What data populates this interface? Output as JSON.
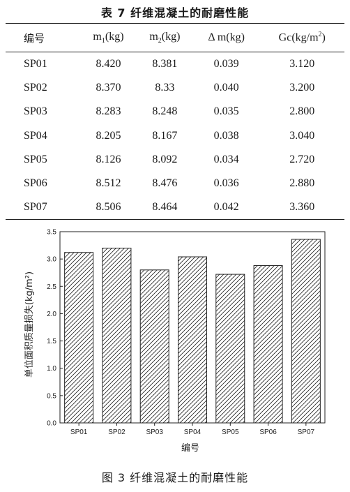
{
  "table": {
    "title": "表 7   纤维混凝土的耐磨性能",
    "headers": {
      "id": "编号",
      "m1_base": "m",
      "m1_sub": "1",
      "m1_unit": "(kg)",
      "m2_base": "m",
      "m2_sub": "2",
      "m2_unit": "(kg)",
      "dm": "Δ m(kg)",
      "gc_base": "Gc(kg/m",
      "gc_sup": "2",
      "gc_end": ")"
    },
    "rows": [
      {
        "id": "SP01",
        "m1": "8.420",
        "m2": "8.381",
        "dm": "0.039",
        "gc": "3.120"
      },
      {
        "id": "SP02",
        "m1": "8.370",
        "m2": "8.33",
        "dm": "0.040",
        "gc": "3.200"
      },
      {
        "id": "SP03",
        "m1": "8.283",
        "m2": "8.248",
        "dm": "0.035",
        "gc": "2.800"
      },
      {
        "id": "SP04",
        "m1": "8.205",
        "m2": "8.167",
        "dm": "0.038",
        "gc": "3.040"
      },
      {
        "id": "SP05",
        "m1": "8.126",
        "m2": "8.092",
        "dm": "0.034",
        "gc": "2.720"
      },
      {
        "id": "SP06",
        "m1": "8.512",
        "m2": "8.476",
        "dm": "0.036",
        "gc": "2.880"
      },
      {
        "id": "SP07",
        "m1": "8.506",
        "m2": "8.464",
        "dm": "0.042",
        "gc": "3.360"
      }
    ]
  },
  "figure": {
    "caption": "图 3   纤维混凝土的耐磨性能"
  },
  "chart_data": {
    "type": "bar",
    "categories": [
      "SP01",
      "SP02",
      "SP03",
      "SP04",
      "SP05",
      "SP06",
      "SP07"
    ],
    "values": [
      3.12,
      3.2,
      2.8,
      3.04,
      2.72,
      2.88,
      3.36
    ],
    "xlabel": "编号",
    "ylabel": "单位面积质量损失(kg/m²)",
    "ylim": [
      0,
      3.5
    ],
    "yticks": [
      "0.0",
      "0.5",
      "1.0",
      "1.5",
      "2.0",
      "2.5",
      "3.0",
      "3.5"
    ],
    "bar_pattern": "diagonal-hatch",
    "grid": false,
    "legend": "none"
  }
}
